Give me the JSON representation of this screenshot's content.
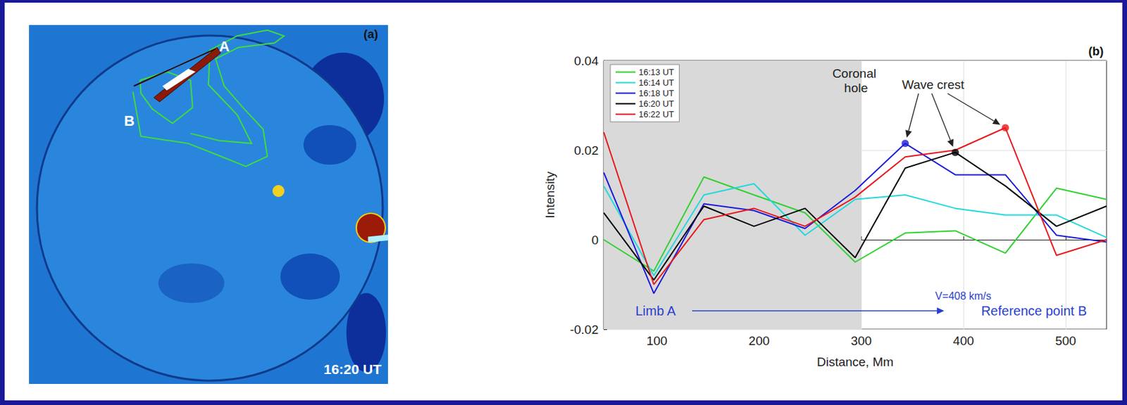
{
  "image_panel": {
    "panel_label": "(a)",
    "labels": [
      "A",
      "B"
    ],
    "time": "16:20 UT"
  },
  "chart_data": {
    "type": "line",
    "panel_label": "(b)",
    "x_label": "Distance, Mm",
    "y_label": "Intensity",
    "x": [
      48,
      97,
      146,
      195,
      245,
      294,
      343,
      392,
      441,
      491,
      540
    ],
    "series": [
      {
        "name": "16:13 UT",
        "color": "#2fd12f",
        "values": [
          0,
          -0.007,
          0.014,
          0.01,
          0.006,
          -0.005,
          0.0015,
          0.002,
          -0.003,
          0.0115,
          0.009
        ]
      },
      {
        "name": "16:14 UT",
        "color": "#22d8dc",
        "values": [
          0.012,
          -0.008,
          0.01,
          0.0125,
          0.001,
          0.009,
          0.01,
          0.007,
          0.0055,
          0.0055,
          0.0005
        ]
      },
      {
        "name": "16:18 UT",
        "color": "#1c1cd8",
        "values": [
          0.015,
          -0.012,
          0.008,
          0.0065,
          0.0025,
          0.011,
          0.0215,
          0.0145,
          0.0145,
          0.001,
          -0.0005
        ]
      },
      {
        "name": "16:20 UT",
        "color": "#000000",
        "values": [
          0.006,
          -0.009,
          0.0075,
          0.003,
          0.007,
          -0.004,
          0.016,
          0.0195,
          0.012,
          0.003,
          0.0075
        ]
      },
      {
        "name": "16:22 UT",
        "color": "#e8161a",
        "values": [
          0.024,
          -0.01,
          0.0045,
          0.007,
          0.003,
          0.0095,
          0.0185,
          0.02,
          0.025,
          -0.0035,
          0
        ]
      }
    ],
    "xlim": [
      48,
      540
    ],
    "xticks": [
      100,
      200,
      300,
      400,
      500
    ],
    "ylim": [
      -0.02,
      0.04
    ],
    "yticks": [
      -0.02,
      0,
      0.02,
      0.04
    ],
    "grid": true,
    "legend": "upper left",
    "shaded_region": {
      "label": "Coronal hole",
      "from": 48,
      "to": 300
    },
    "crests": {
      "label": "Wave crest",
      "points": [
        {
          "series": "16:18 UT",
          "x": 343,
          "y": 0.0215
        },
        {
          "series": "16:20 UT",
          "x": 392,
          "y": 0.0195
        },
        {
          "series": "16:22 UT",
          "x": 441,
          "y": 0.025
        }
      ]
    },
    "annotations": {
      "speed": "V=408 km/s",
      "start": "Limb A",
      "end": "Reference point B"
    }
  }
}
